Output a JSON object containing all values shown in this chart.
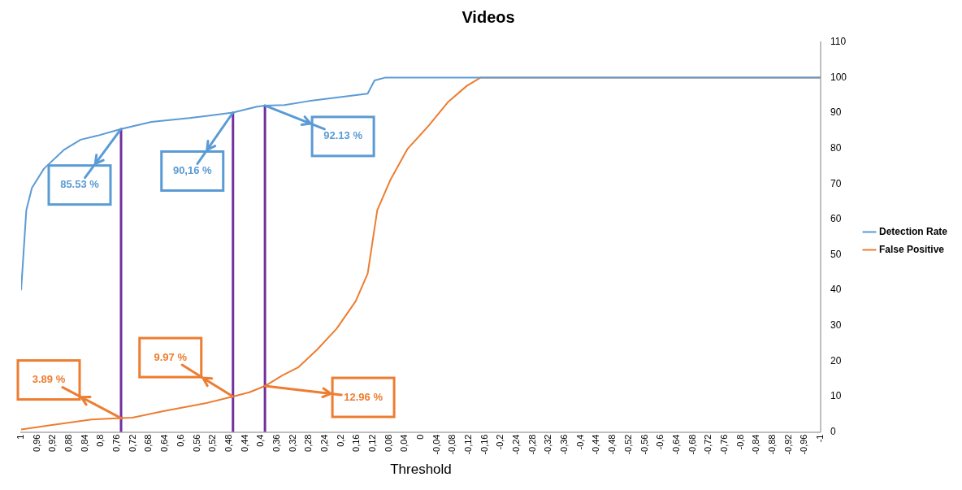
{
  "chart_data": {
    "type": "line",
    "title": "Videos",
    "xlabel": "Threshold",
    "xlim": [
      1,
      -1
    ],
    "xticks": [
      1,
      {
        "value": 0.96,
        "label": "0,96"
      },
      {
        "value": 0.92,
        "label": "0,92"
      },
      {
        "value": 0.88,
        "label": "0,88"
      },
      {
        "value": 0.84,
        "label": "0,84"
      },
      {
        "value": 0.8,
        "label": "0,8"
      },
      {
        "value": 0.76,
        "label": "0,76"
      },
      {
        "value": 0.72,
        "label": "0,72"
      },
      {
        "value": 0.68,
        "label": "0,68"
      },
      {
        "value": 0.64,
        "label": "0,64"
      },
      {
        "value": 0.6,
        "label": "0,6"
      },
      {
        "value": 0.56,
        "label": "0,56"
      },
      {
        "value": 0.52,
        "label": "0,52"
      },
      {
        "value": 0.48,
        "label": "0,48"
      },
      {
        "value": 0.44,
        "label": "0,44"
      },
      {
        "value": 0.4,
        "label": "0,4"
      },
      {
        "value": 0.36,
        "label": "0,36"
      },
      {
        "value": 0.32,
        "label": "0,32"
      },
      {
        "value": 0.28,
        "label": "0,28"
      },
      {
        "value": 0.24,
        "label": "0,24"
      },
      {
        "value": 0.2,
        "label": "0,2"
      },
      {
        "value": 0.16,
        "label": "0,16"
      },
      {
        "value": 0.12,
        "label": "0,12"
      },
      {
        "value": 0.08,
        "label": "0,08"
      },
      {
        "value": 0.04,
        "label": "0,04"
      },
      0,
      {
        "value": -0.04,
        "label": "-0,04"
      },
      {
        "value": -0.08,
        "label": "-0,08"
      },
      {
        "value": -0.12,
        "label": "-0,12"
      },
      {
        "value": -0.16,
        "label": "-0,16"
      },
      {
        "value": -0.2,
        "label": "-0,2"
      },
      {
        "value": -0.24,
        "label": "-0,24"
      },
      {
        "value": -0.28,
        "label": "-0,28"
      },
      {
        "value": -0.32,
        "label": "-0,32"
      },
      {
        "value": -0.36,
        "label": "-0,36"
      },
      {
        "value": -0.4,
        "label": "-0,4"
      },
      {
        "value": -0.44,
        "label": "-0,44"
      },
      {
        "value": -0.48,
        "label": "-0,48"
      },
      {
        "value": -0.52,
        "label": "-0,52"
      },
      {
        "value": -0.56,
        "label": "-0,56"
      },
      {
        "value": -0.6,
        "label": "-0,6"
      },
      {
        "value": -0.64,
        "label": "-0,64"
      },
      {
        "value": -0.68,
        "label": "-0,68"
      },
      {
        "value": -0.72,
        "label": "-0,72"
      },
      {
        "value": -0.76,
        "label": "-0,76"
      },
      {
        "value": -0.8,
        "label": "-0,8"
      },
      {
        "value": -0.84,
        "label": "-0,84"
      },
      {
        "value": -0.88,
        "label": "-0,88"
      },
      {
        "value": -0.92,
        "label": "-0,92"
      },
      {
        "value": -0.96,
        "label": "-0,96"
      },
      -1
    ],
    "ylim": [
      0,
      110
    ],
    "yticks": [
      0,
      10,
      20,
      30,
      40,
      50,
      60,
      70,
      80,
      90,
      100,
      110
    ],
    "grid": false,
    "legend": "right",
    "marker": "none",
    "line_style": "solid",
    "series": [
      {
        "name": "Detection Rate",
        "color": "#5b9bd5",
        "x": [
          1,
          0.987,
          0.973,
          0.943,
          0.892,
          0.851,
          0.81,
          0.75,
          0.674,
          0.579,
          0.47,
          0.41,
          0.39,
          0.341,
          0.28,
          0.198,
          0.133,
          0.116,
          0.09,
          -1
        ],
        "values": [
          40,
          62.6,
          68.9,
          74.3,
          79.7,
          82.5,
          83.6,
          85.53,
          87.5,
          88.6,
          90.16,
          91.8,
          92.13,
          92.3,
          93.4,
          94.6,
          95.5,
          99.2,
          100,
          100
        ]
      },
      {
        "name": "False Positive",
        "color": "#ed7d31",
        "x": [
          1,
          0.919,
          0.824,
          0.75,
          0.722,
          0.647,
          0.539,
          0.47,
          0.429,
          0.39,
          0.347,
          0.307,
          0.259,
          0.211,
          0.163,
          0.133,
          0.109,
          0.076,
          0.034,
          -0.02,
          -0.067,
          -0.115,
          -0.149,
          -1
        ],
        "values": [
          0.7,
          2.0,
          3.5,
          3.89,
          4.0,
          5.8,
          8.1,
          9.97,
          11.2,
          12.96,
          15.9,
          18.2,
          23.3,
          29.1,
          36.9,
          44.7,
          62.6,
          71.2,
          79.8,
          86.5,
          93,
          97.7,
          100,
          100
        ]
      }
    ],
    "ref_lines": [
      {
        "axis": "x",
        "value": 0.75,
        "color": "#7030a0"
      },
      {
        "axis": "x",
        "value": 0.47,
        "color": "#7030a0"
      },
      {
        "axis": "x",
        "value": 0.39,
        "color": "#7030a0"
      }
    ],
    "annotations": [
      {
        "text": "85.53 %",
        "x": 0.75,
        "y": 85.53
      },
      {
        "text": "90,16 %",
        "x": 0.47,
        "y": 90.16
      },
      {
        "text": "92.13 %",
        "x": 0.39,
        "y": 92.13
      },
      {
        "text": "3.89 %",
        "x": 0.75,
        "y": 3.89
      },
      {
        "text": "9.97 %",
        "x": 0.47,
        "y": 9.97
      },
      {
        "text": "12.96 %",
        "x": 0.39,
        "y": 12.96
      }
    ]
  }
}
